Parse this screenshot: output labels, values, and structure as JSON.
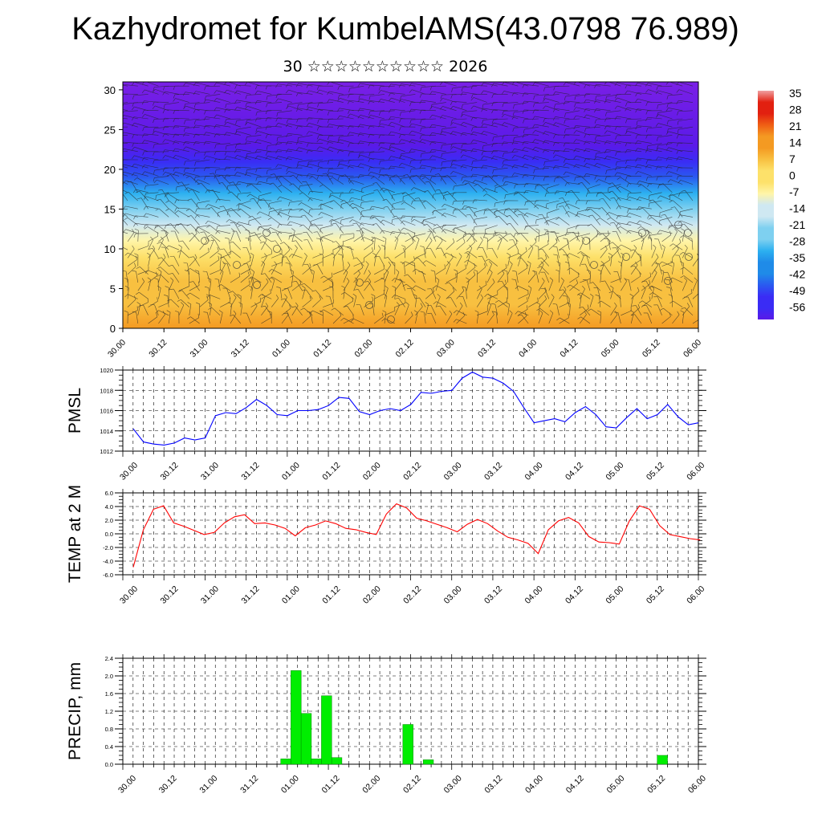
{
  "title": "Kazhydromet for KumbelAMS(43.0798 76.989)",
  "subtitle": "30 ☆☆☆☆☆☆☆☆☆☆ 2026",
  "time_ticks": [
    "30.00",
    "30.12",
    "31.00",
    "31.12",
    "01.00",
    "01.12",
    "02.00",
    "02.12",
    "03.00",
    "03.12",
    "04.00",
    "04.12",
    "05.00",
    "05.12",
    "06.00"
  ],
  "colors": {
    "pmsl_line": "#0000ff",
    "temp_line": "#ff0000",
    "precip_bar": "#00ee00",
    "precip_bar_edge": "#008800"
  },
  "chart_data": [
    {
      "type": "heatmap",
      "title": "Kazhydromet for KumbelAMS(43.0798 76.989)",
      "subtitle": "30 ☆☆☆☆☆☆☆☆☆☆ 2026",
      "y_tick_labels": [
        "0",
        "5",
        "10",
        "15",
        "20",
        "25",
        "30"
      ],
      "ylim": [
        0,
        31
      ],
      "x_tick_labels": [
        "30.00",
        "30.12",
        "31.00",
        "31.12",
        "01.00",
        "01.12",
        "02.00",
        "02.12",
        "03.00",
        "03.12",
        "04.00",
        "04.12",
        "05.00",
        "05.12",
        "06.00"
      ],
      "colorbar_labels": [
        "35",
        "28",
        "21",
        "14",
        "7",
        "0",
        "-7",
        "-14",
        "-21",
        "-28",
        "-35",
        "-42",
        "-49",
        "-56"
      ],
      "colorbar_range": [
        -56,
        35
      ],
      "overlay": "wind barbs",
      "temperature_profile": [
        {
          "level": 0,
          "value": 16
        },
        {
          "level": 3,
          "value": 10
        },
        {
          "level": 6,
          "value": 4
        },
        {
          "level": 9,
          "value": -2
        },
        {
          "level": 11,
          "value": -8
        },
        {
          "level": 13,
          "value": -14
        },
        {
          "level": 15,
          "value": -21
        },
        {
          "level": 17,
          "value": -30
        },
        {
          "level": 19,
          "value": -40
        },
        {
          "level": 21,
          "value": -50
        },
        {
          "level": 23,
          "value": -56
        },
        {
          "level": 31,
          "value": -60
        }
      ]
    },
    {
      "type": "line",
      "ylabel": "PMSL",
      "ylim": [
        1012,
        1020
      ],
      "y_tick_labels": [
        "1012",
        "1014",
        "1016",
        "1018",
        "1020"
      ],
      "x_tick_labels": [
        "30.00",
        "30.12",
        "31.00",
        "31.12",
        "01.00",
        "01.12",
        "02.00",
        "02.12",
        "03.00",
        "03.12",
        "04.00",
        "04.12",
        "05.00",
        "05.12",
        "06.00"
      ],
      "series": [
        {
          "values": [
            1014.2,
            1012.9,
            1012.7,
            1012.6,
            1012.8,
            1013.3,
            1013.1,
            1013.3,
            1015.5,
            1015.8,
            1015.7,
            1016.3,
            1017.1,
            1016.5,
            1015.6,
            1015.5,
            1016.0,
            1016.0,
            1016.1,
            1016.5,
            1017.3,
            1017.2,
            1015.9,
            1015.6,
            1016.0,
            1016.2,
            1016.0,
            1016.6,
            1017.8,
            1017.7,
            1017.9,
            1018.0,
            1019.2,
            1019.8,
            1019.3,
            1019.2,
            1018.7,
            1017.9,
            1016.3,
            1014.8,
            1015.0,
            1015.2,
            1014.9,
            1015.8,
            1016.4,
            1015.6,
            1014.4,
            1014.3,
            1015.3,
            1016.2,
            1015.2,
            1015.6,
            1016.6,
            1015.4,
            1014.6,
            1014.8
          ]
        }
      ],
      "grid": true
    },
    {
      "type": "line",
      "ylabel": "TEMP at 2 M",
      "ylim": [
        -6,
        6
      ],
      "y_tick_labels": [
        "6.0",
        "4.0",
        "2.0",
        "0.0",
        "-2.0",
        "-4.0",
        "-6.0"
      ],
      "x_tick_labels": [
        "30.00",
        "30.12",
        "31.00",
        "31.12",
        "01.00",
        "01.12",
        "02.00",
        "02.12",
        "03.00",
        "03.12",
        "04.00",
        "04.12",
        "05.00",
        "05.12",
        "06.00"
      ],
      "series": [
        {
          "values": [
            -4.9,
            0.6,
            3.6,
            4.1,
            1.6,
            1.1,
            0.5,
            -0.1,
            0.2,
            1.6,
            2.5,
            2.8,
            1.5,
            1.6,
            1.3,
            0.8,
            -0.3,
            0.9,
            1.3,
            1.9,
            1.5,
            0.8,
            0.6,
            0.2,
            -0.1,
            2.9,
            4.4,
            3.8,
            2.3,
            1.9,
            1.4,
            0.9,
            0.3,
            1.4,
            2.1,
            1.5,
            0.4,
            -0.5,
            -0.9,
            -1.4,
            -2.9,
            0.6,
            1.9,
            2.4,
            1.6,
            -0.4,
            -1.2,
            -1.3,
            -1.5,
            1.9,
            4.1,
            3.6,
            1.2,
            -0.1,
            -0.4,
            -0.7,
            -0.9
          ]
        }
      ],
      "grid": true
    },
    {
      "type": "bar",
      "ylabel": "PRECIP, mm",
      "ylim": [
        0,
        2.4
      ],
      "y_tick_labels": [
        "0.0",
        "0.4",
        "0.8",
        "1.2",
        "1.6",
        "2.0",
        "2.4"
      ],
      "x_tick_labels": [
        "30.00",
        "30.12",
        "31.00",
        "31.12",
        "01.00",
        "01.12",
        "02.00",
        "02.12",
        "03.00",
        "03.12",
        "04.00",
        "04.12",
        "05.00",
        "05.12",
        "06.00"
      ],
      "bars": [
        {
          "t": 15,
          "value": 0.12
        },
        {
          "t": 16,
          "value": 2.12
        },
        {
          "t": 17,
          "value": 1.15
        },
        {
          "t": 18,
          "value": 0.12
        },
        {
          "t": 19,
          "value": 1.55
        },
        {
          "t": 20,
          "value": 0.15
        },
        {
          "t": 27,
          "value": 0.9
        },
        {
          "t": 29,
          "value": 0.1
        },
        {
          "t": 52,
          "value": 0.2
        }
      ],
      "grid": true
    }
  ]
}
